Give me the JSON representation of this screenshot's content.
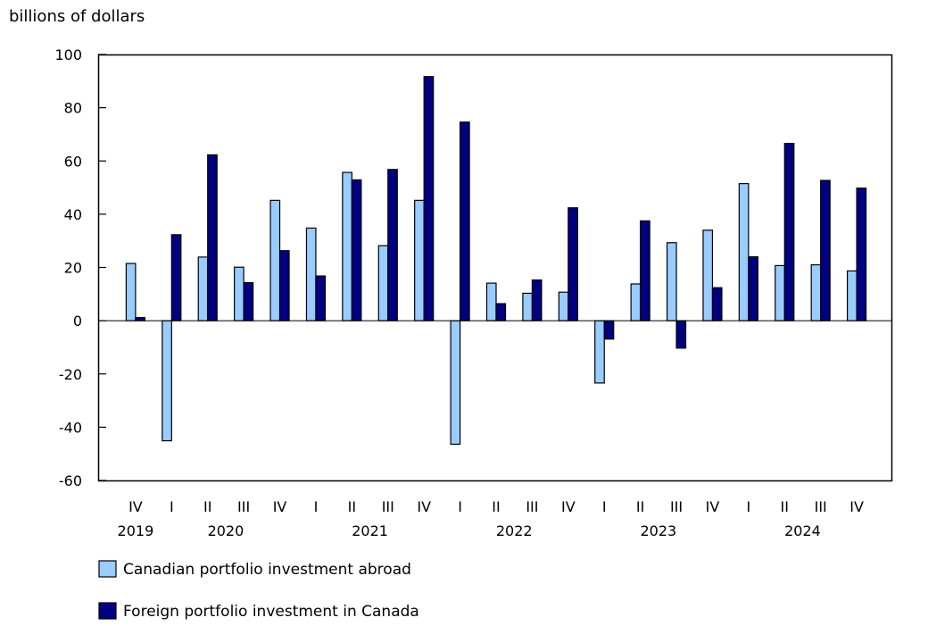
{
  "chart_data": {
    "type": "bar",
    "ylabel": "billions of dollars",
    "ylim": [
      -60,
      100
    ],
    "yticks": [
      100,
      80,
      60,
      40,
      20,
      0,
      -20,
      -40,
      -60
    ],
    "grid": false,
    "legend_position": "bottom-left",
    "categories": [
      "IV",
      "I",
      "II",
      "III",
      "IV",
      "I",
      "II",
      "III",
      "IV",
      "I",
      "II",
      "III",
      "IV",
      "I",
      "II",
      "III",
      "IV",
      "I",
      "II",
      "III",
      "IV"
    ],
    "years": [
      {
        "label": "2019",
        "quarters": [
          "IV"
        ]
      },
      {
        "label": "2020",
        "quarters": [
          "I",
          "II",
          "III",
          "IV"
        ]
      },
      {
        "label": "2021",
        "quarters": [
          "I",
          "II",
          "III",
          "IV"
        ]
      },
      {
        "label": "2022",
        "quarters": [
          "I",
          "II",
          "III",
          "IV"
        ]
      },
      {
        "label": "2023",
        "quarters": [
          "I",
          "II",
          "III",
          "IV"
        ]
      },
      {
        "label": "2024",
        "quarters": [
          "I",
          "II",
          "III",
          "IV"
        ]
      }
    ],
    "series": [
      {
        "name": "Canadian portfolio investment abroad",
        "color": "#99ccff",
        "values": [
          21.5,
          -45.1,
          23.9,
          20.1,
          45.2,
          34.8,
          55.7,
          28.2,
          45.2,
          -46.4,
          14.1,
          10.3,
          10.7,
          -23.4,
          13.8,
          29.3,
          34.0,
          51.5,
          20.7,
          21.0,
          18.7
        ]
      },
      {
        "name": "Foreign portfolio investment in Canada",
        "color": "#000080",
        "values": [
          1.2,
          32.3,
          62.3,
          14.3,
          26.3,
          16.8,
          52.9,
          56.8,
          91.7,
          74.6,
          6.4,
          15.3,
          42.4,
          -6.9,
          37.5,
          -10.3,
          12.4,
          24.0,
          66.6,
          52.7,
          49.8
        ]
      }
    ]
  }
}
